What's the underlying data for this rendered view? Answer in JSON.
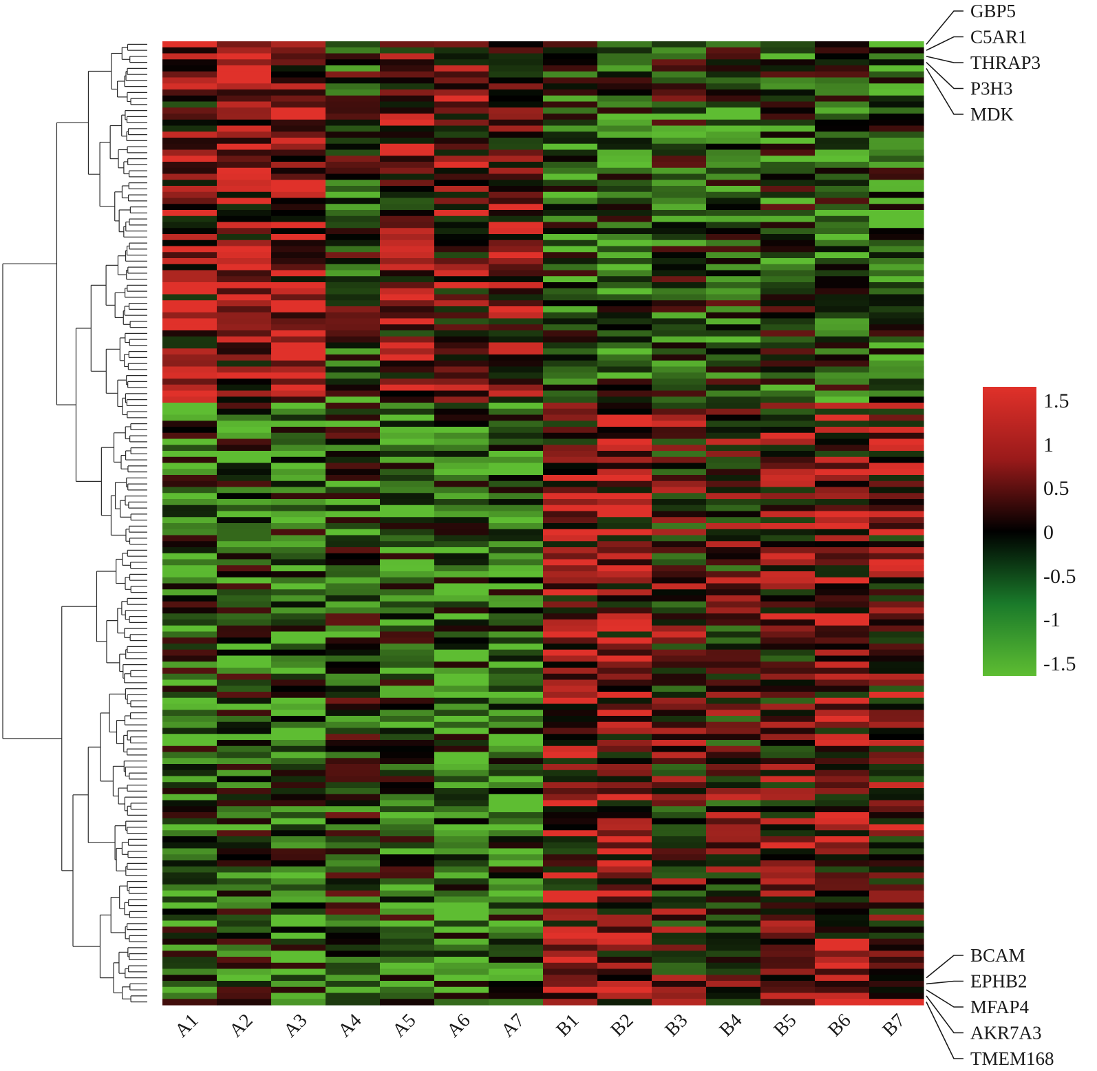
{
  "chart_data": {
    "type": "heatmap",
    "title": "",
    "columns": [
      "A1",
      "A2",
      "A3",
      "A4",
      "A5",
      "A6",
      "A7",
      "B1",
      "B2",
      "B3",
      "B4",
      "B5",
      "B6",
      "B7"
    ],
    "row_count": 160,
    "labeled_rows": {
      "top": [
        "GBP5",
        "C5AR1",
        "THRAP3",
        "P3H3",
        "MDK"
      ],
      "bottom": [
        "BCAM",
        "EPHB2",
        "MFAP4",
        "AKR7A3",
        "TMEM168"
      ]
    },
    "color_scale": {
      "min": -1.5,
      "max": 1.5,
      "ticks": [
        "1.5",
        "1",
        "0.5",
        "0",
        "-0.5",
        "-1",
        "-1.5"
      ],
      "colors": {
        "low": "#5ebd32",
        "mid": "#000000",
        "high": "#e0312a"
      }
    },
    "dendrogram": "rows, left side",
    "column_blocks": [
      {
        "name": "rows 1-60",
        "mean": [
          0.5,
          0.8,
          1.0,
          -0.3,
          0.5,
          0.5,
          0.6,
          -0.6,
          -0.7,
          -0.3,
          -0.5,
          -0.5,
          -0.6,
          -0.7
        ]
      },
      {
        "name": "rows 61-160",
        "mean": [
          -0.6,
          -0.6,
          -0.7,
          -0.4,
          -0.6,
          -0.8,
          -0.8,
          0.6,
          0.7,
          0.2,
          0.2,
          0.4,
          0.6,
          0.4
        ]
      }
    ]
  }
}
